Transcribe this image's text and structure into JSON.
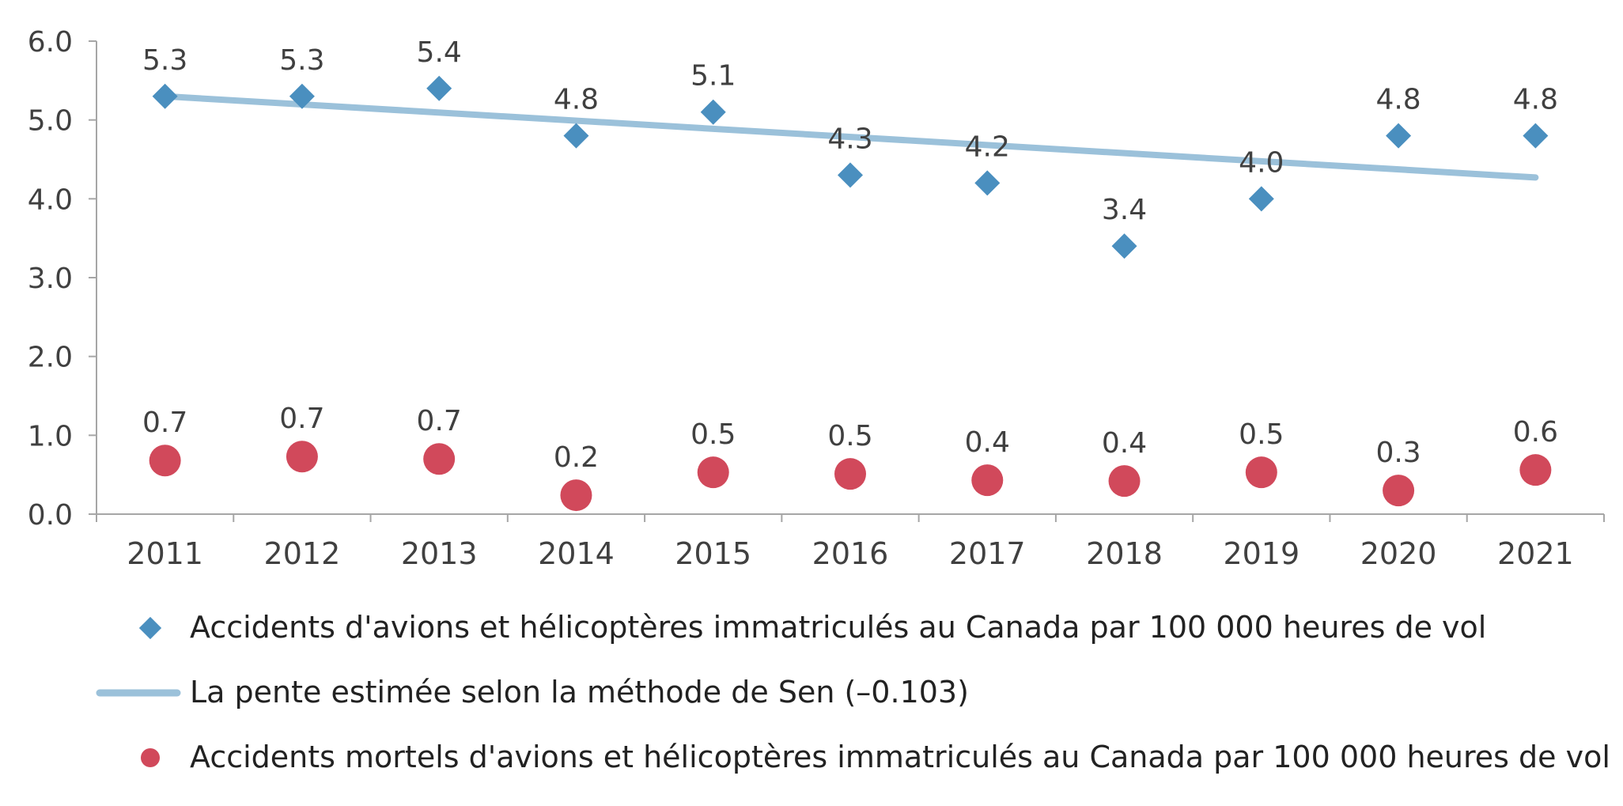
{
  "colors": {
    "accidents": "#4a8fbf",
    "trend": "#9bc1da",
    "fatal": "#d1495b",
    "axis": "#a6a6a6",
    "text": "#404040"
  },
  "chart_data": {
    "type": "scatter",
    "title": "",
    "xlabel": "",
    "ylabel": "",
    "ylim": [
      0,
      6
    ],
    "yticks": [
      "0.0",
      "1.0",
      "2.0",
      "3.0",
      "4.0",
      "5.0",
      "6.0"
    ],
    "categories": [
      "2011",
      "2012",
      "2013",
      "2014",
      "2015",
      "2016",
      "2017",
      "2018",
      "2019",
      "2020",
      "2021"
    ],
    "series": [
      {
        "name": "Accidents d'avions et hélicoptères immatriculés au Canada par 100 000 heures de vol",
        "marker": "diamond",
        "values": [
          5.3,
          5.3,
          5.4,
          4.8,
          5.1,
          4.3,
          4.2,
          3.4,
          4.0,
          4.8,
          4.8
        ],
        "labels": [
          "5.3",
          "5.3",
          "5.4",
          "4.8",
          "5.1",
          "4.3",
          "4.2",
          "3.4",
          "4.0",
          "4.8",
          "4.8"
        ]
      },
      {
        "name": "La pente estimée selon la méthode de Sen (–0.103)",
        "marker": "line",
        "start": 5.3,
        "end": 4.27
      },
      {
        "name": "Accidents mortels d'avions et hélicoptères immatriculés au Canada par 100 000 heures de vol",
        "marker": "circle",
        "values": [
          0.68,
          0.73,
          0.7,
          0.24,
          0.53,
          0.51,
          0.43,
          0.42,
          0.53,
          0.3,
          0.56
        ],
        "labels": [
          "0.7",
          "0.7",
          "0.7",
          "0.2",
          "0.5",
          "0.5",
          "0.4",
          "0.4",
          "0.5",
          "0.3",
          "0.6"
        ]
      }
    ],
    "legend_position": "bottom"
  }
}
